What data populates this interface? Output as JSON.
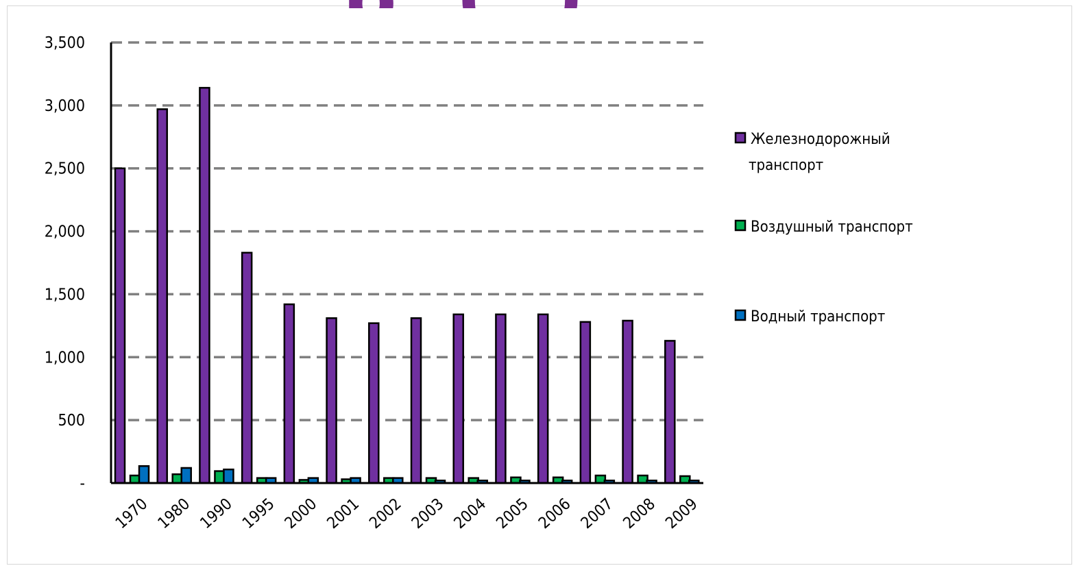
{
  "slide": {
    "title_fragment": "р (        )"
  },
  "chart_data": {
    "type": "bar",
    "title": "",
    "xlabel": "",
    "ylabel": "",
    "ylim": [
      0,
      3500
    ],
    "y_ticks": [
      0,
      500,
      1000,
      1500,
      2000,
      2500,
      3000,
      3500
    ],
    "y_tick_labels": [
      "-",
      "500",
      "1,000",
      "1,500",
      "2,000",
      "2,500",
      "3,000",
      "3,500"
    ],
    "grid": true,
    "grid_style": "dashed",
    "legend_position": "right",
    "categories": [
      "1970",
      "1980",
      "1990",
      "1995",
      "2000",
      "2001",
      "2002",
      "2003",
      "2004",
      "2005",
      "2006",
      "2007",
      "2008",
      "2009"
    ],
    "series": [
      {
        "name": "Железнодорожный транспорт",
        "legend_lines": [
          "Железнодорожный",
          "транспорт"
        ],
        "color": "#7030a0",
        "values": [
          2500,
          2970,
          3140,
          1830,
          1420,
          1310,
          1270,
          1310,
          1340,
          1340,
          1340,
          1280,
          1290,
          1130
        ]
      },
      {
        "name": "Воздушный транспорт",
        "legend_lines": [
          "Воздушный транспорт"
        ],
        "color": "#00b050",
        "values": [
          60,
          70,
          95,
          40,
          25,
          30,
          40,
          40,
          40,
          45,
          45,
          60,
          60,
          55
        ]
      },
      {
        "name": "Водный транспорт",
        "legend_lines": [
          "Водный транспорт"
        ],
        "color": "#0070c0",
        "values": [
          135,
          120,
          108,
          40,
          40,
          40,
          40,
          20,
          20,
          20,
          20,
          20,
          20,
          20
        ]
      }
    ]
  }
}
